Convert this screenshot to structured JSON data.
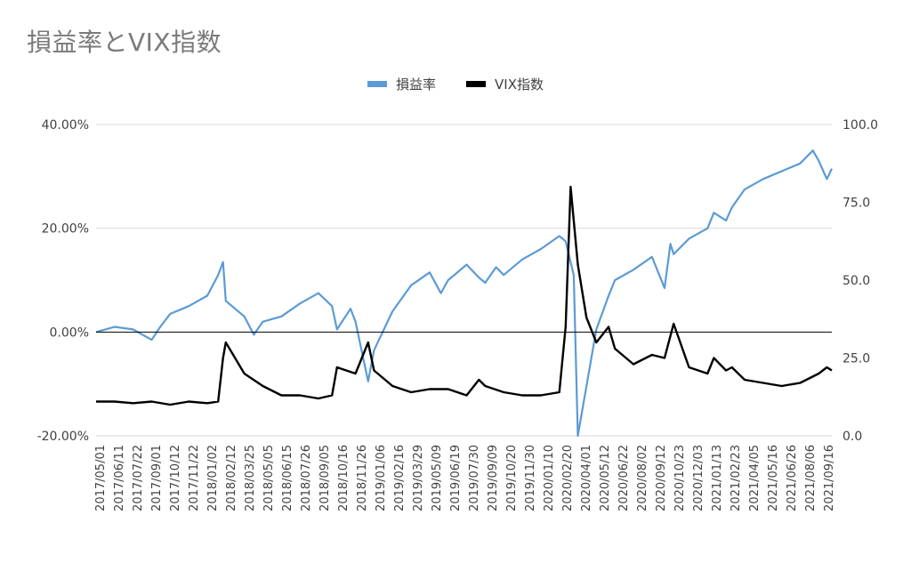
{
  "chart_data": {
    "type": "line",
    "title": "損益率とVIX指数",
    "legend_position": "top",
    "grid": true,
    "x_tick_labels": [
      "2017/05/01",
      "2017/06/11",
      "2017/07/22",
      "2017/09/01",
      "2017/10/12",
      "2017/11/22",
      "2018/01/02",
      "2018/02/12",
      "2018/03/25",
      "2018/05/05",
      "2018/06/15",
      "2018/07/26",
      "2018/09/05",
      "2018/10/16",
      "2018/11/26",
      "2019/01/06",
      "2019/02/16",
      "2019/03/29",
      "2019/05/09",
      "2019/06/19",
      "2019/07/30",
      "2019/09/09",
      "2019/10/20",
      "2019/11/30",
      "2020/01/10",
      "2020/02/20",
      "2020/04/01",
      "2020/05/12",
      "2020/06/22",
      "2020/08/02",
      "2020/09/12",
      "2020/10/23",
      "2020/12/03",
      "2021/01/13",
      "2021/02/23",
      "2021/04/05",
      "2021/05/16",
      "2021/06/26",
      "2021/08/06",
      "2021/09/16"
    ],
    "y_left": {
      "ticks": [
        "-20.00%",
        "0.00%",
        "20.00%",
        "40.00%"
      ],
      "tick_values": [
        -20,
        0,
        20,
        40
      ],
      "range": [
        -20,
        40
      ],
      "unit": "%"
    },
    "y_right": {
      "ticks": [
        "0.0",
        "25.0",
        "50.0",
        "75.0",
        "100.0"
      ],
      "tick_values": [
        0,
        25,
        50,
        75,
        100
      ],
      "range": [
        0,
        100
      ]
    },
    "series": [
      {
        "name": "損益率",
        "axis": "left",
        "color": "#5b9bd5",
        "x": [
          "2017/05/01",
          "2017/06/11",
          "2017/07/22",
          "2017/09/01",
          "2017/09/20",
          "2017/10/12",
          "2017/11/22",
          "2018/01/02",
          "2018/01/26",
          "2018/02/06",
          "2018/02/12",
          "2018/03/25",
          "2018/04/15",
          "2018/05/05",
          "2018/06/15",
          "2018/07/26",
          "2018/09/05",
          "2018/10/05",
          "2018/10/16",
          "2018/11/15",
          "2018/11/26",
          "2018/12/24",
          "2019/01/06",
          "2019/02/16",
          "2019/03/29",
          "2019/05/09",
          "2019/06/03",
          "2019/06/19",
          "2019/07/30",
          "2019/08/26",
          "2019/09/09",
          "2019/10/03",
          "2019/10/20",
          "2019/11/30",
          "2020/01/10",
          "2020/02/20",
          "2020/03/05",
          "2020/03/23",
          "2020/04/01",
          "2020/05/12",
          "2020/06/08",
          "2020/06/22",
          "2020/08/02",
          "2020/09/12",
          "2020/10/10",
          "2020/10/23",
          "2020/10/30",
          "2020/12/03",
          "2021/01/13",
          "2021/01/27",
          "2021/02/23",
          "2021/03/08",
          "2021/04/05",
          "2021/05/16",
          "2021/06/26",
          "2021/08/06",
          "2021/09/03",
          "2021/09/16",
          "2021/10/04",
          "2021/10/15"
        ],
        "y": [
          0.0,
          1.0,
          0.5,
          -1.5,
          1.0,
          3.5,
          5.0,
          7.0,
          11.0,
          13.5,
          6.0,
          3.0,
          -0.5,
          2.0,
          3.0,
          5.5,
          7.5,
          5.0,
          0.5,
          4.5,
          2.0,
          -9.5,
          -3.5,
          4.0,
          9.0,
          11.5,
          7.5,
          10.0,
          13.0,
          10.5,
          9.5,
          12.5,
          11.0,
          14.0,
          16.0,
          18.5,
          17.5,
          11.0,
          -20.0,
          0.5,
          7.0,
          10.0,
          12.0,
          14.5,
          8.5,
          17.0,
          15.0,
          18.0,
          20.0,
          23.0,
          21.5,
          24.0,
          27.5,
          29.5,
          31.0,
          32.5,
          35.0,
          33.0,
          29.5,
          31.5
        ]
      },
      {
        "name": "VIX指数",
        "axis": "right",
        "color": "#000000",
        "x": [
          "2017/05/01",
          "2017/06/11",
          "2017/07/22",
          "2017/09/01",
          "2017/10/12",
          "2017/11/22",
          "2018/01/02",
          "2018/01/26",
          "2018/02/06",
          "2018/02/12",
          "2018/03/25",
          "2018/05/05",
          "2018/06/15",
          "2018/07/26",
          "2018/09/05",
          "2018/10/05",
          "2018/10/16",
          "2018/11/26",
          "2018/12/24",
          "2019/01/06",
          "2019/02/16",
          "2019/03/29",
          "2019/05/09",
          "2019/06/19",
          "2019/07/30",
          "2019/08/26",
          "2019/09/09",
          "2019/10/20",
          "2019/11/30",
          "2020/01/10",
          "2020/02/20",
          "2020/03/05",
          "2020/03/16",
          "2020/04/01",
          "2020/04/20",
          "2020/05/12",
          "2020/06/08",
          "2020/06/22",
          "2020/08/02",
          "2020/09/12",
          "2020/10/10",
          "2020/10/30",
          "2020/12/03",
          "2021/01/13",
          "2021/01/27",
          "2021/02/23",
          "2021/03/08",
          "2021/04/05",
          "2021/05/16",
          "2021/06/26",
          "2021/08/06",
          "2021/09/16",
          "2021/10/04",
          "2021/10/15"
        ],
        "y": [
          11,
          11,
          10.5,
          11,
          10,
          11,
          10.5,
          11,
          25,
          30,
          20,
          16,
          13,
          13,
          12,
          13,
          22,
          20,
          30,
          21,
          16,
          14,
          15,
          15,
          13,
          18,
          16,
          14,
          13,
          13,
          14,
          35,
          80,
          55,
          38,
          30,
          35,
          28,
          23,
          26,
          25,
          36,
          22,
          20,
          25,
          21,
          22,
          18,
          17,
          16,
          17,
          20,
          22,
          21
        ]
      }
    ]
  }
}
